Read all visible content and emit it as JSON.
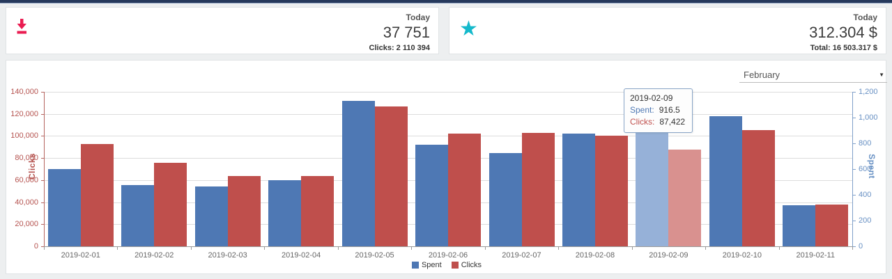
{
  "cards": [
    {
      "icon": "download-icon",
      "icon_color": "#ea1c51",
      "period_label": "Today",
      "value": "37 751",
      "sub_label": "Clicks: 2 110 394"
    },
    {
      "icon": "star-icon",
      "icon_color": "#14b9cb",
      "period_label": "Today",
      "value": "312.304 $",
      "sub_label": "Total: 16 503.317 $"
    }
  ],
  "chart_panel": {
    "month_select": {
      "value": "February",
      "caret": "▼"
    },
    "tooltip": {
      "date": "2019-02-09",
      "spent_label": "Spent:",
      "spent_value": "916.5",
      "clicks_label": "Clicks:",
      "clicks_value": "87,422"
    },
    "legend": [
      {
        "label": "Spent",
        "color": "#4e78b4"
      },
      {
        "label": "Clicks",
        "color": "#bf4f4c"
      }
    ]
  },
  "chart_data": {
    "type": "bar",
    "categories": [
      "2019-02-01",
      "2019-02-02",
      "2019-02-03",
      "2019-02-04",
      "2019-02-05",
      "2019-02-06",
      "2019-02-07",
      "2019-02-08",
      "2019-02-09",
      "2019-02-10",
      "2019-02-11"
    ],
    "series": [
      {
        "name": "Spent",
        "axis": "right",
        "color": "#4e78b4",
        "hover_color": "#96b1d8",
        "values": [
          600,
          475,
          465,
          515,
          1130,
          790,
          725,
          875,
          916.5,
          1010,
          320
        ]
      },
      {
        "name": "Clicks",
        "axis": "left",
        "color": "#bf4f4c",
        "hover_color": "#d9918f",
        "values": [
          93000,
          75500,
          64000,
          63500,
          126500,
          102000,
          102500,
          100000,
          87422,
          105500,
          38000
        ]
      }
    ],
    "left_axis": {
      "label": "Clicks",
      "min": 0,
      "max": 140000,
      "step": 20000,
      "color": "#b5534f"
    },
    "right_axis": {
      "label": "Spent",
      "min": 0,
      "max": 1200,
      "step": 200,
      "color": "#6790c3"
    },
    "highlighted_index": 8,
    "grid": true,
    "legend_position": "bottom"
  }
}
